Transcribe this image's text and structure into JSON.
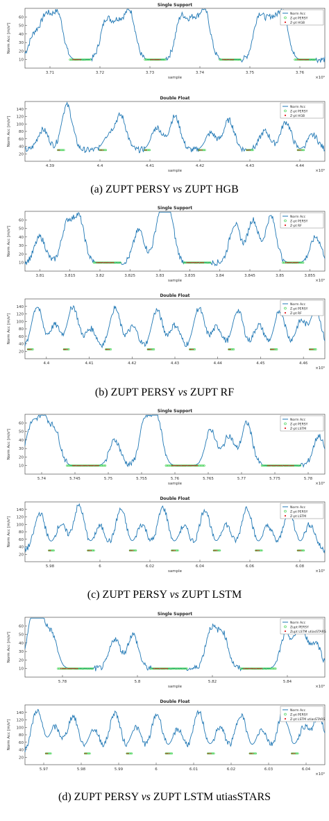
{
  "colors": {
    "signal": "#1f77b4",
    "persy": "#2ecc40",
    "other": "#e41a1c",
    "axis": "#333333"
  },
  "captions": [
    {
      "prefix": "(a) ZUPT PERSY ",
      "vs": "vs",
      "suffix": " ZUPT HGB"
    },
    {
      "prefix": "(b) ZUPT PERSY ",
      "vs": "vs",
      "suffix": " ZUPT RF"
    },
    {
      "prefix": "(c) ZUPT PERSY ",
      "vs": "vs",
      "suffix": " ZUPT LSTM"
    },
    {
      "prefix": "(d) ZUPT PERSY ",
      "vs": "vs",
      "suffix": " ZUPT LSTM utiasSTARS"
    }
  ],
  "chart_data": [
    {
      "type": "line",
      "title": "Single Support",
      "xlabel": "sample",
      "ylabel": "Norm Acc [m/s²]",
      "exponent": "×10⁵",
      "ylim": [
        0,
        70
      ],
      "yticks": [
        10,
        20,
        30,
        40,
        50,
        60
      ],
      "xticks": [
        "3.71",
        "3.72",
        "3.73",
        "3.74",
        "3.75",
        "3.76"
      ],
      "legend": [
        "Norm Acc",
        "Z-pt PERSY",
        "Z-pt HGB"
      ],
      "peaks": [
        [
          0.03,
          38
        ],
        [
          0.07,
          58
        ],
        [
          0.11,
          62
        ],
        [
          0.27,
          55
        ],
        [
          0.31,
          50
        ],
        [
          0.35,
          65
        ],
        [
          0.52,
          58
        ],
        [
          0.56,
          52
        ],
        [
          0.6,
          66
        ],
        [
          0.78,
          60
        ],
        [
          0.82,
          52
        ],
        [
          0.86,
          66
        ]
      ],
      "zupt_persy": [
        [
          0.15,
          0.22
        ],
        [
          0.4,
          0.47
        ],
        [
          0.65,
          0.72
        ],
        [
          0.9,
          0.97
        ]
      ],
      "zupt_other": [
        [
          0.16,
          0.19
        ],
        [
          0.42,
          0.45
        ],
        [
          0.66,
          0.7
        ],
        [
          0.91,
          0.95
        ]
      ],
      "base": 10
    },
    {
      "type": "line",
      "title": "Double Float",
      "xlabel": "sample",
      "ylabel": "Norm Acc [m/s²]",
      "exponent": "×10⁵",
      "ylim": [
        0,
        160
      ],
      "yticks": [
        20,
        40,
        60,
        80,
        100,
        120,
        140
      ],
      "xticks": [
        "4.39",
        "4.4",
        "4.41",
        "4.42",
        "4.43",
        "4.44"
      ],
      "legend": [
        "Norm Acc",
        "Z-pt PERSY",
        "Z-pt HGB"
      ],
      "peaks": [
        [
          0.06,
          85
        ],
        [
          0.14,
          150
        ],
        [
          0.28,
          70
        ],
        [
          0.32,
          120
        ],
        [
          0.44,
          90
        ],
        [
          0.5,
          120
        ],
        [
          0.62,
          75
        ],
        [
          0.68,
          110
        ],
        [
          0.8,
          80
        ],
        [
          0.87,
          105
        ],
        [
          0.96,
          70
        ]
      ],
      "zupt_persy": [
        [
          0.11,
          0.13
        ],
        [
          0.25,
          0.27
        ],
        [
          0.4,
          0.42
        ],
        [
          0.58,
          0.6
        ],
        [
          0.74,
          0.76
        ],
        [
          0.91,
          0.93
        ]
      ],
      "zupt_other": [
        [
          0.11,
          0.12
        ],
        [
          0.25,
          0.26
        ],
        [
          0.4,
          0.41
        ],
        [
          0.58,
          0.59
        ],
        [
          0.74,
          0.75
        ],
        [
          0.91,
          0.92
        ]
      ],
      "base": 30
    },
    {
      "type": "line",
      "title": "Single Support",
      "xlabel": "sample",
      "ylabel": "Norm Acc [m/s²]",
      "exponent": "×10⁵",
      "ylim": [
        0,
        70
      ],
      "yticks": [
        10,
        20,
        30,
        40,
        50,
        60
      ],
      "xticks": [
        "3.81",
        "3.815",
        "3.82",
        "3.825",
        "3.83",
        "3.835",
        "3.84",
        "3.845",
        "3.85",
        "3.855"
      ],
      "legend": [
        "Norm Acc",
        "Z-pt PERSY",
        "Z-pt RF"
      ],
      "peaks": [
        [
          0.05,
          40
        ],
        [
          0.14,
          55
        ],
        [
          0.18,
          62
        ],
        [
          0.38,
          48
        ],
        [
          0.45,
          60
        ],
        [
          0.48,
          66
        ],
        [
          0.7,
          55
        ],
        [
          0.76,
          60
        ],
        [
          0.82,
          64
        ],
        [
          0.97,
          40
        ]
      ],
      "zupt_persy": [
        [
          0.23,
          0.32
        ],
        [
          0.53,
          0.62
        ],
        [
          0.86,
          0.93
        ]
      ],
      "zupt_other": [
        [
          0.24,
          0.3
        ],
        [
          0.54,
          0.6
        ],
        [
          0.87,
          0.91
        ]
      ],
      "base": 10
    },
    {
      "type": "line",
      "title": "Double Float",
      "xlabel": "",
      "ylabel": "Norm Acc [m/s²]",
      "exponent": "×10⁵",
      "ylim": [
        0,
        160
      ],
      "yticks": [
        20,
        40,
        60,
        80,
        100,
        120,
        140
      ],
      "xticks": [
        "4.4",
        "4.41",
        "4.42",
        "4.43",
        "4.44",
        "4.45",
        "4.46"
      ],
      "legend": [
        "Norm Acc",
        "Z-pt PERSY",
        "Z-pt RF"
      ],
      "peaks": [
        [
          0.04,
          140
        ],
        [
          0.1,
          90
        ],
        [
          0.16,
          140
        ],
        [
          0.22,
          80
        ],
        [
          0.3,
          135
        ],
        [
          0.36,
          85
        ],
        [
          0.44,
          130
        ],
        [
          0.5,
          90
        ],
        [
          0.58,
          135
        ],
        [
          0.64,
          85
        ],
        [
          0.71,
          130
        ],
        [
          0.78,
          90
        ],
        [
          0.85,
          130
        ],
        [
          0.92,
          100
        ],
        [
          0.97,
          130
        ]
      ],
      "zupt_persy": [
        [
          0.01,
          0.03
        ],
        [
          0.13,
          0.15
        ],
        [
          0.27,
          0.29
        ],
        [
          0.41,
          0.43
        ],
        [
          0.55,
          0.57
        ],
        [
          0.68,
          0.7
        ],
        [
          0.82,
          0.84
        ],
        [
          0.95,
          0.97
        ]
      ],
      "zupt_other": [
        [
          0.01,
          0.02
        ],
        [
          0.13,
          0.14
        ],
        [
          0.27,
          0.28
        ],
        [
          0.41,
          0.42
        ],
        [
          0.55,
          0.56
        ],
        [
          0.68,
          0.69
        ],
        [
          0.82,
          0.83
        ],
        [
          0.95,
          0.96
        ]
      ],
      "base": 25
    },
    {
      "type": "line",
      "title": "Single Support",
      "xlabel": "sample",
      "ylabel": "Norm Acc [m/s²]",
      "exponent": "×10⁵",
      "ylim": [
        0,
        70
      ],
      "yticks": [
        10,
        20,
        30,
        40,
        50,
        60
      ],
      "xticks": [
        "5.74",
        "5.745",
        "5.75",
        "5.755",
        "5.76",
        "5.765",
        "5.77",
        "5.775",
        "5.78"
      ],
      "legend": [
        "Norm Acc",
        "Z-pt PERSY",
        "Z-pt LSTM"
      ],
      "peaks": [
        [
          0.02,
          55
        ],
        [
          0.06,
          65
        ],
        [
          0.1,
          50
        ],
        [
          0.3,
          40
        ],
        [
          0.4,
          62
        ],
        [
          0.44,
          66
        ],
        [
          0.62,
          52
        ],
        [
          0.68,
          45
        ],
        [
          0.74,
          60
        ],
        [
          0.98,
          45
        ]
      ],
      "zupt_persy": [
        [
          0.14,
          0.27
        ],
        [
          0.47,
          0.6
        ],
        [
          0.79,
          0.92
        ]
      ],
      "zupt_other": [
        [
          0.16,
          0.25
        ],
        [
          0.49,
          0.58
        ],
        [
          0.81,
          0.9
        ]
      ],
      "base": 10
    },
    {
      "type": "line",
      "title": "Double Float",
      "xlabel": "sample",
      "ylabel": "Norm Acc [m/s²]",
      "exponent": "×10⁵",
      "ylim": [
        0,
        160
      ],
      "yticks": [
        20,
        40,
        60,
        80,
        100,
        120,
        140
      ],
      "xticks": [
        "5.98",
        "6",
        "6.02",
        "6.04",
        "6.06",
        "6.08"
      ],
      "legend": [
        "Norm Acc",
        "Z-pt PERSY",
        "Z-pt LSTM"
      ],
      "peaks": [
        [
          0.05,
          130
        ],
        [
          0.12,
          100
        ],
        [
          0.18,
          150
        ],
        [
          0.25,
          95
        ],
        [
          0.32,
          140
        ],
        [
          0.39,
          100
        ],
        [
          0.46,
          145
        ],
        [
          0.53,
          95
        ],
        [
          0.6,
          140
        ],
        [
          0.67,
          100
        ],
        [
          0.74,
          145
        ],
        [
          0.81,
          95
        ],
        [
          0.88,
          140
        ],
        [
          0.95,
          100
        ]
      ],
      "zupt_persy": [
        [
          0.08,
          0.1
        ],
        [
          0.21,
          0.23
        ],
        [
          0.35,
          0.37
        ],
        [
          0.49,
          0.51
        ],
        [
          0.63,
          0.65
        ],
        [
          0.77,
          0.79
        ],
        [
          0.91,
          0.93
        ]
      ],
      "zupt_other": [
        [
          0.08,
          0.09
        ],
        [
          0.21,
          0.22
        ],
        [
          0.35,
          0.36
        ],
        [
          0.49,
          0.5
        ],
        [
          0.63,
          0.64
        ],
        [
          0.77,
          0.78
        ],
        [
          0.91,
          0.92
        ]
      ],
      "base": 30
    },
    {
      "type": "line",
      "title": "Single Support",
      "xlabel": "sample",
      "ylabel": "Norm Acc [m/s²]",
      "exponent": "×10⁵",
      "ylim": [
        0,
        70
      ],
      "yticks": [
        10,
        20,
        30,
        40,
        50,
        60
      ],
      "xticks": [
        "5.78",
        "5.8",
        "5.82",
        "5.84"
      ],
      "legend": [
        "Norm Acc",
        "Zupt PERSY",
        "Zupt LSTM utiasSTARS"
      ],
      "peaks": [
        [
          0.02,
          55
        ],
        [
          0.05,
          68
        ],
        [
          0.09,
          48
        ],
        [
          0.3,
          45
        ],
        [
          0.36,
          50
        ],
        [
          0.62,
          55
        ],
        [
          0.66,
          50
        ],
        [
          0.87,
          50
        ],
        [
          0.92,
          62
        ],
        [
          0.97,
          40
        ]
      ],
      "zupt_persy": [
        [
          0.11,
          0.23
        ],
        [
          0.42,
          0.54
        ],
        [
          0.72,
          0.84
        ]
      ],
      "zupt_other": [
        [
          0.12,
          0.18
        ],
        [
          0.43,
          0.48
        ],
        [
          0.73,
          0.79
        ]
      ],
      "base": 10
    },
    {
      "type": "line",
      "title": "Double Float",
      "xlabel": "",
      "ylabel": "Norm Acc [m/s²]",
      "exponent": "×10⁵",
      "ylim": [
        0,
        160
      ],
      "yticks": [
        20,
        40,
        60,
        80,
        100,
        120,
        140
      ],
      "xticks": [
        "5.97",
        "5.98",
        "5.99",
        "6",
        "6.01",
        "6.02",
        "6.03",
        "6.04"
      ],
      "legend": [
        "Norm Acc",
        "Z-pt PERSY",
        "Z-pt LSTM utiasSTARS"
      ],
      "peaks": [
        [
          0.04,
          145
        ],
        [
          0.1,
          100
        ],
        [
          0.16,
          130
        ],
        [
          0.23,
          95
        ],
        [
          0.3,
          140
        ],
        [
          0.37,
          100
        ],
        [
          0.44,
          135
        ],
        [
          0.51,
          95
        ],
        [
          0.58,
          140
        ],
        [
          0.65,
          100
        ],
        [
          0.72,
          135
        ],
        [
          0.79,
          95
        ],
        [
          0.86,
          140
        ],
        [
          0.93,
          100
        ],
        [
          0.98,
          130
        ]
      ],
      "zupt_persy": [
        [
          0.07,
          0.09
        ],
        [
          0.2,
          0.22
        ],
        [
          0.34,
          0.36
        ],
        [
          0.47,
          0.49
        ],
        [
          0.61,
          0.63
        ],
        [
          0.75,
          0.77
        ],
        [
          0.89,
          0.91
        ]
      ],
      "zupt_other": [
        [
          0.07,
          0.08
        ],
        [
          0.2,
          0.21
        ],
        [
          0.34,
          0.35
        ],
        [
          0.47,
          0.48
        ],
        [
          0.61,
          0.62
        ],
        [
          0.75,
          0.76
        ],
        [
          0.89,
          0.9
        ]
      ],
      "base": 30
    }
  ]
}
